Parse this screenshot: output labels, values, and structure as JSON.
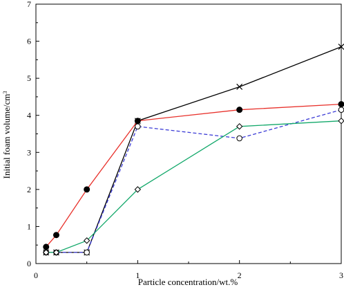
{
  "chart_data": {
    "type": "line",
    "xlabel": "Particle concentration/wt.%",
    "ylabel": "Initial foam volume/cm",
    "ylabel_sup": "3",
    "xlim": [
      0,
      3
    ],
    "ylim": [
      0,
      7
    ],
    "x_ticks": [
      "0",
      "1",
      "2",
      "3"
    ],
    "y_ticks": [
      "0",
      "1",
      "2",
      "3",
      "4",
      "5",
      "6",
      "7"
    ],
    "grid": false,
    "legend": "none",
    "series": [
      {
        "marker": "cross",
        "color": "#000000",
        "dash": false,
        "points": [
          [
            0.1,
            0.3
          ],
          [
            0.2,
            0.3
          ],
          [
            0.5,
            0.3
          ],
          [
            1.0,
            3.85
          ],
          [
            2.0,
            4.77
          ],
          [
            3.0,
            5.85
          ]
        ]
      },
      {
        "marker": "filled-circle",
        "color": "#e8302a",
        "dash": false,
        "points": [
          [
            0.1,
            0.45
          ],
          [
            0.2,
            0.77
          ],
          [
            0.5,
            2.0
          ],
          [
            1.0,
            3.85
          ],
          [
            2.0,
            4.15
          ],
          [
            3.0,
            4.3
          ]
        ]
      },
      {
        "marker": "open-circle",
        "color": "#3b3bd6",
        "dash": true,
        "points": [
          [
            0.1,
            0.3
          ],
          [
            0.2,
            0.3
          ],
          [
            0.5,
            0.3
          ],
          [
            1.0,
            3.7
          ],
          [
            2.0,
            3.38
          ],
          [
            3.0,
            4.15
          ]
        ]
      },
      {
        "marker": "open-diamond",
        "color": "#12a86a",
        "dash": false,
        "points": [
          [
            0.1,
            0.3
          ],
          [
            0.2,
            0.3
          ],
          [
            0.5,
            0.62
          ],
          [
            1.0,
            2.0
          ],
          [
            2.0,
            3.7
          ],
          [
            3.0,
            3.85
          ]
        ]
      }
    ]
  }
}
